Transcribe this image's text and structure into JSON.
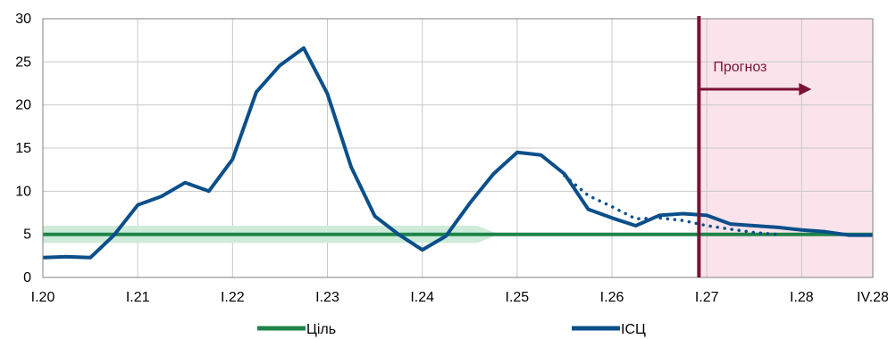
{
  "chart_data": {
    "type": "line",
    "x_ticks": [
      "I.20",
      "I.21",
      "I.22",
      "I.23",
      "I.24",
      "I.25",
      "I.26",
      "I.27",
      "I.28",
      "IV.28"
    ],
    "y_ticks": [
      "0",
      "5",
      "10",
      "15",
      "20",
      "25",
      "30"
    ],
    "ylim": [
      0,
      30
    ],
    "x_start": "I.20",
    "x_end": "IV.28",
    "grid": true,
    "legend_position": "bottom",
    "forecast_label": "Прогноз",
    "forecast_start": "2026-12",
    "target_band": {
      "lower": 4,
      "upper": 6,
      "start": "2020-01",
      "end": "2024-10"
    },
    "series": [
      {
        "name": "Ціль",
        "color": "#1e8449",
        "style": "solid",
        "points": [
          [
            "2020-01",
            5
          ],
          [
            "2028-10",
            5
          ]
        ]
      },
      {
        "name": "ІСЦ",
        "color": "#0b4f8a",
        "style": "solid",
        "points": [
          [
            "2020-01",
            2.3
          ],
          [
            "2020-04",
            2.4
          ],
          [
            "2020-07",
            2.3
          ],
          [
            "2020-10",
            4.9
          ],
          [
            "2021-01",
            8.4
          ],
          [
            "2021-04",
            9.4
          ],
          [
            "2021-07",
            11.0
          ],
          [
            "2021-10",
            10.0
          ],
          [
            "2022-01",
            13.7
          ],
          [
            "2022-04",
            21.5
          ],
          [
            "2022-07",
            24.6
          ],
          [
            "2022-10",
            26.6
          ],
          [
            "2023-01",
            21.3
          ],
          [
            "2023-04",
            12.8
          ],
          [
            "2023-07",
            7.1
          ],
          [
            "2023-10",
            5.0
          ],
          [
            "2024-01",
            3.2
          ],
          [
            "2024-04",
            4.8
          ],
          [
            "2024-07",
            8.6
          ],
          [
            "2024-10",
            12.0
          ],
          [
            "2025-01",
            14.5
          ],
          [
            "2025-04",
            14.2
          ],
          [
            "2025-07",
            12.0
          ],
          [
            "2025-10",
            7.9
          ],
          [
            "2026-01",
            6.9
          ],
          [
            "2026-04",
            6.0
          ],
          [
            "2026-07",
            7.2
          ],
          [
            "2026-10",
            7.4
          ],
          [
            "2027-01",
            7.2
          ],
          [
            "2027-04",
            6.2
          ],
          [
            "2027-07",
            6.0
          ],
          [
            "2027-10",
            5.8
          ],
          [
            "2028-01",
            5.5
          ],
          [
            "2028-04",
            5.3
          ],
          [
            "2028-07",
            4.9
          ],
          [
            "2028-10",
            4.9
          ]
        ]
      },
      {
        "name": "",
        "color": "#0b4f8a",
        "style": "dotted",
        "points": [
          [
            "2025-07",
            11.8
          ],
          [
            "2025-10",
            9.5
          ],
          [
            "2026-01",
            8.2
          ],
          [
            "2026-04",
            6.8
          ],
          [
            "2026-07",
            6.9
          ],
          [
            "2026-10",
            6.6
          ],
          [
            "2027-01",
            6.0
          ],
          [
            "2027-04",
            5.6
          ],
          [
            "2027-07",
            5.2
          ],
          [
            "2027-10",
            5.0
          ]
        ]
      }
    ]
  }
}
